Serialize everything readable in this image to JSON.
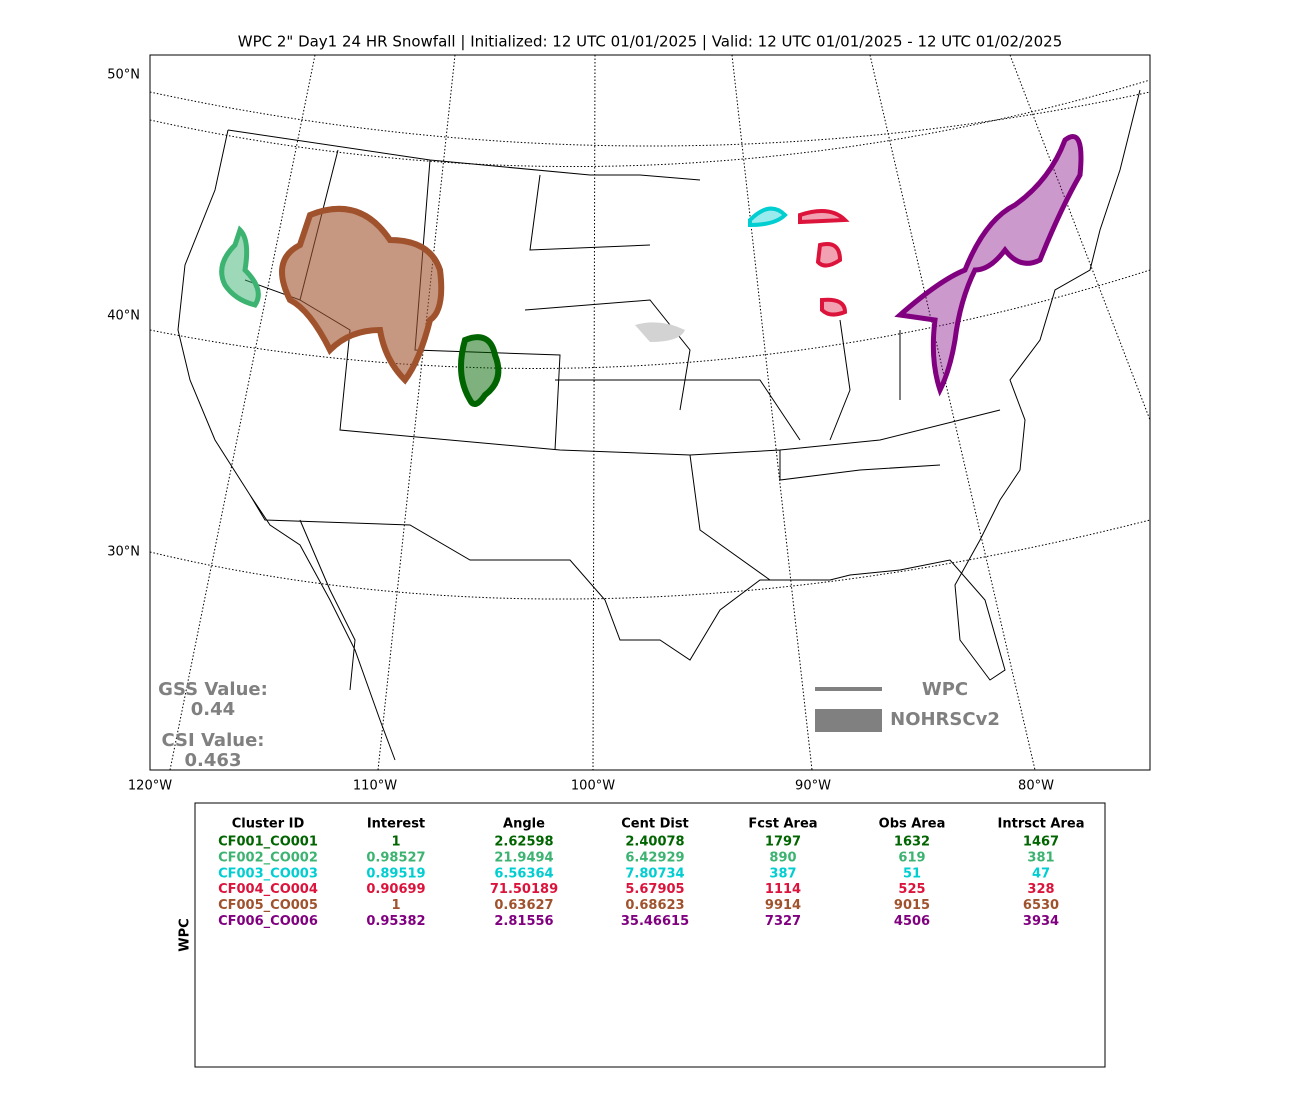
{
  "title": "WPC 2\" Day1 24 HR Snowfall | Initialized: 12 UTC 01/01/2025 | Valid: 12 UTC 01/01/2025 - 12 UTC 01/02/2025",
  "map": {
    "lat_labels": [
      "50°N",
      "40°N",
      "30°N"
    ],
    "lon_labels": [
      "120°W",
      "110°W",
      "100°W",
      "90°W",
      "80°W"
    ],
    "legend": [
      "WPC",
      "NOHRSCv2"
    ],
    "gss": {
      "label": "GSS Value:",
      "value": "0.44"
    },
    "csi": {
      "label": "CSI Value:",
      "value": "0.463"
    }
  },
  "table": {
    "side_label": "WPC",
    "header": [
      "Cluster ID",
      "Interest",
      "Angle",
      "Cent Dist",
      "Fcst Area",
      "Obs Area",
      "Intrsct Area"
    ],
    "row_colors": [
      "#006400",
      "#3cb371",
      "#00ced1",
      "#dc143c",
      "#a0522d",
      "#800080"
    ],
    "rows": [
      [
        "CF001_CO001",
        1,
        2.62598,
        2.40078,
        1797,
        1632,
        1467
      ],
      [
        "CF002_CO002",
        0.98527,
        21.9494,
        6.42929,
        890,
        619,
        381
      ],
      [
        "CF003_CO003",
        0.89519,
        6.56364,
        7.80734,
        387,
        51,
        47
      ],
      [
        "CF004_CO004",
        0.90699,
        71.50189,
        5.67905,
        1114,
        525,
        328
      ],
      [
        "CF005_CO005",
        1,
        0.63627,
        0.68623,
        9914,
        9015,
        6530
      ],
      [
        "CF006_CO006",
        0.95382,
        2.81556,
        35.46615,
        7327,
        4506,
        3934
      ]
    ]
  }
}
